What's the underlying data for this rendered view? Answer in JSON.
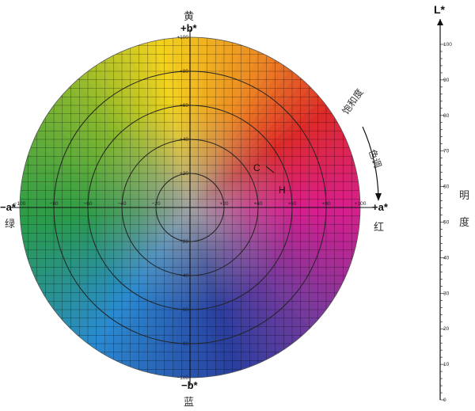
{
  "diagram": {
    "labels": {
      "top_cn": "黄",
      "top_axis": "+b*",
      "bottom_cn": "蓝",
      "bottom_axis": "−b*",
      "left_cn": "绿",
      "left_axis": "−a*",
      "right_cn": "红",
      "right_axis": "+a*",
      "saturation": "饱和度",
      "hue": "色调",
      "chroma_marker": "C",
      "hue_marker": "H",
      "lightness_axis": "L*",
      "lightness_title_1": "明",
      "lightness_title_2": "度"
    },
    "a_ticks": [
      "−100",
      "−80",
      "−60",
      "−40",
      "−20",
      "0",
      "+20",
      "+40",
      "+60",
      "+80",
      "+100"
    ],
    "b_ticks": [
      "+100",
      "+80",
      "+60",
      "+40",
      "+20",
      "0",
      "−20",
      "−40",
      "−60",
      "−80",
      "−100"
    ],
    "l_ticks": [
      "0",
      "10",
      "20",
      "30",
      "40",
      "50",
      "60",
      "70",
      "80",
      "90",
      "100"
    ],
    "rings": [
      20,
      40,
      60,
      80
    ],
    "colors": {
      "yellow": "#f2d21e",
      "orange": "#ec8a24",
      "red": "#dc2a2a",
      "magenta": "#d81e8c",
      "purple": "#7a3a9c",
      "blue": "#2a3f9e",
      "cyan": "#2a8ad0",
      "green": "#2a9a4a",
      "lime": "#8ab82e",
      "gray": "#9a9a9a",
      "grid": "#000000"
    }
  }
}
